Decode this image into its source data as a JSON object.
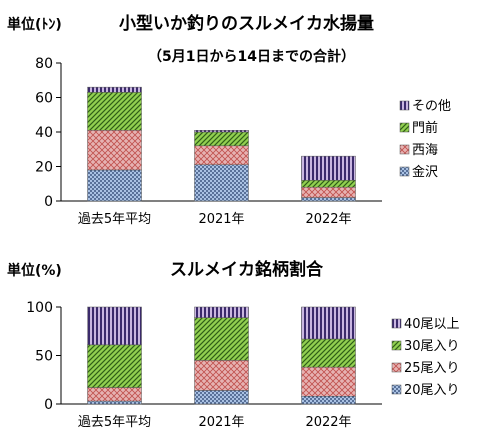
{
  "chart_data": [
    {
      "type": "bar",
      "stacked": true,
      "title": "小型いか釣りのスルメイカ水揚量",
      "subtitle": "（5月1日から14日までの合計）",
      "ylabel": "単位(ﾄﾝ)",
      "categories": [
        "過去5年平均",
        "2021年",
        "2022年"
      ],
      "ylim": [
        0,
        80
      ],
      "yticks": [
        0,
        20,
        40,
        60,
        80
      ],
      "legend_position": "right",
      "series": [
        {
          "name": "金沢",
          "values": [
            18,
            21,
            2
          ],
          "color": "#a9c1e3",
          "pattern": "dots"
        },
        {
          "name": "西海",
          "values": [
            23,
            11,
            6
          ],
          "color": "#e6b2b2",
          "pattern": "cross"
        },
        {
          "name": "門前",
          "values": [
            22,
            8,
            4
          ],
          "color": "#92d050",
          "pattern": "diag"
        },
        {
          "name": "その他",
          "values": [
            3,
            1,
            14
          ],
          "color": "#c9b6e0",
          "pattern": "vert"
        }
      ]
    },
    {
      "type": "bar",
      "stacked": true,
      "title": "スルメイカ銘柄割合",
      "ylabel": "単位(%)",
      "categories": [
        "過去5年平均",
        "2021年",
        "2022年"
      ],
      "ylim": [
        0,
        100
      ],
      "yticks": [
        0,
        50,
        100
      ],
      "legend_position": "right",
      "series": [
        {
          "name": "20尾入り",
          "values": [
            3,
            14,
            8
          ],
          "color": "#a9c1e3",
          "pattern": "dots"
        },
        {
          "name": "25尾入り",
          "values": [
            14,
            31,
            30
          ],
          "color": "#e6b2b2",
          "pattern": "cross"
        },
        {
          "name": "30尾入り",
          "values": [
            44,
            44,
            29
          ],
          "color": "#92d050",
          "pattern": "diag"
        },
        {
          "name": "40尾以上",
          "values": [
            39,
            11,
            33
          ],
          "color": "#c9b6e0",
          "pattern": "vert"
        }
      ]
    }
  ]
}
